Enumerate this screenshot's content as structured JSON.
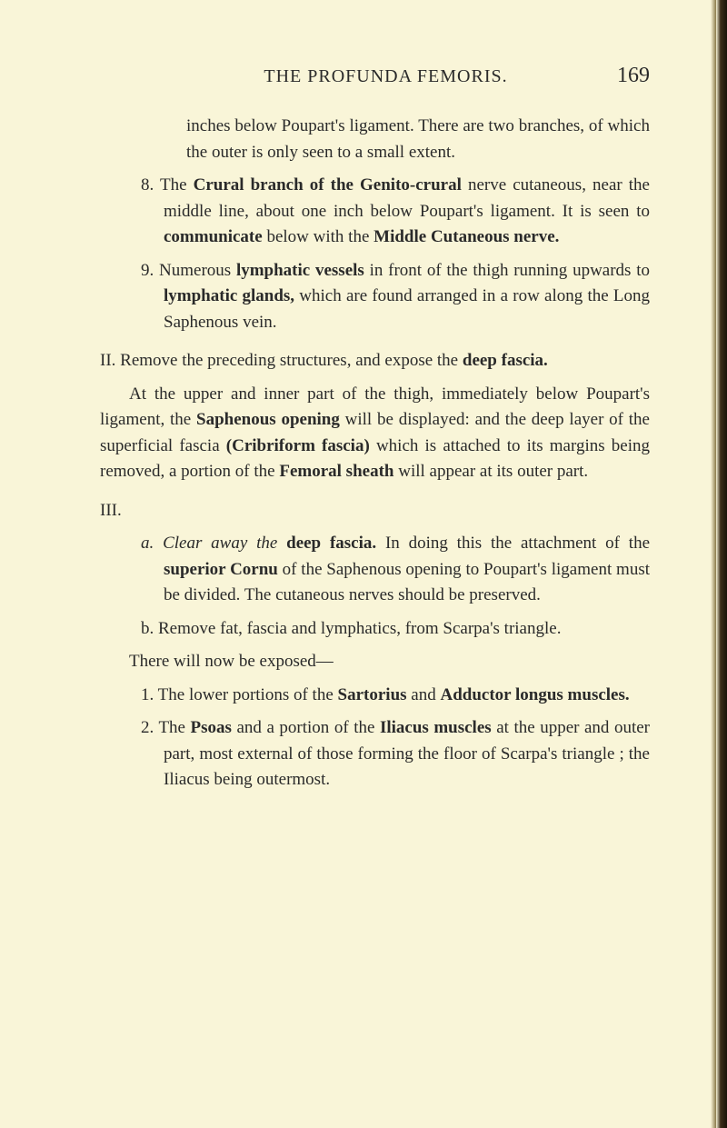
{
  "header": {
    "title": "THE PROFUNDA FEMORIS.",
    "page_number": "169"
  },
  "content": {
    "continuation_para": "inches below Poupart's ligament. There are two branches, of which the outer is only seen to a small extent.",
    "item8_prefix": "8. The ",
    "item8_bold1": "Crural branch of the Genito-crural",
    "item8_mid1": " nerve cutaneous, near the middle line, about one inch below Poupart's ligament. It is seen to ",
    "item8_bold2": "communicate",
    "item8_mid2": " below with the ",
    "item8_bold3": "Middle Cutaneous nerve.",
    "item9_prefix": "9. Numerous ",
    "item9_bold1": "lymphatic vessels",
    "item9_mid1": " in front of the thigh running upwards to ",
    "item9_bold2": "lymphatic glands,",
    "item9_end": " which are found arranged in a row along the Long Saphenous vein.",
    "section2_prefix": "II. Remove the preceding structures, and expose the ",
    "section2_bold": "deep fascia.",
    "section2_para1_start": "At the upper and inner part of the thigh, immediately below Poupart's ligament, the ",
    "section2_para1_bold1": "Saphenous opening",
    "section2_para1_mid1": " will be displayed: and the deep layer of the superficial fascia ",
    "section2_para1_bold2": "(Cribriform fascia)",
    "section2_para1_mid2": " which is attached to its margins being removed, a portion of the ",
    "section2_para1_bold3": "Femoral sheath",
    "section2_para1_end": " will appear at its outer part.",
    "section3_heading": "III.",
    "item_a_prefix": "a. Clear away the ",
    "item_a_bold1": "deep fascia.",
    "item_a_mid1": " In doing this the attachment of the ",
    "item_a_bold2": "superior Cornu",
    "item_a_end": " of the Saphenous opening to Poupart's ligament must be divided. The cutaneous nerves should be preserved.",
    "item_b": "b. Remove fat, fascia and lymphatics, from Scarpa's triangle.",
    "there_will": "There will now be exposed—",
    "item1_prefix": "1. The lower portions of the ",
    "item1_bold1": "Sartorius",
    "item1_mid": " and ",
    "item1_bold2": "Adductor longus muscles.",
    "item2_prefix": "2. The ",
    "item2_bold1": "Psoas",
    "item2_mid1": " and a portion of the ",
    "item2_bold2": "Iliacus muscles",
    "item2_end": " at the upper and outer part, most external of those forming the floor of Scarpa's triangle ; the Iliacus being outermost."
  },
  "styling": {
    "background_color": "#f9f5d8",
    "text_color": "#2a2a2a",
    "font_family": "Georgia, Times New Roman, serif",
    "body_font_size": 19,
    "title_font_size": 20,
    "page_number_font_size": 24
  }
}
